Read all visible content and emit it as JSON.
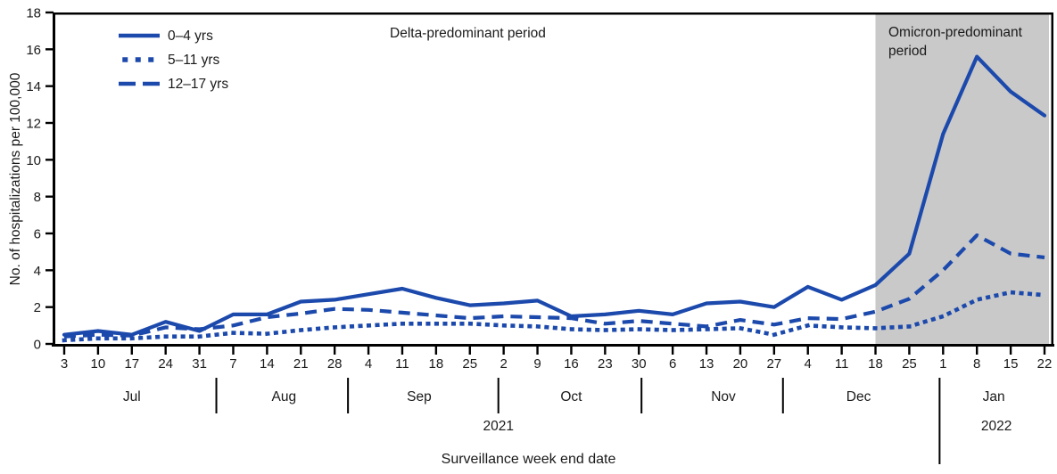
{
  "figure": {
    "ylabel": "No. of hospitalizations per 100,000",
    "xlabel": "Surveillance week end date",
    "delta_annotation": "Delta-predominant period",
    "omicron_annotation": "Omicron-predominant period"
  },
  "legend": [
    {
      "label": "0–4 yrs",
      "style": "solid"
    },
    {
      "label": "5–11 yrs",
      "style": "dotted"
    },
    {
      "label": "12–17 yrs",
      "style": "dashed"
    }
  ],
  "colors": {
    "line_blue": "#1c49ac",
    "shade_gray": "#c9c9c9",
    "axis_black": "#000000",
    "text": "#1a1a1a"
  },
  "chart_data": {
    "type": "line",
    "title": "",
    "xlabel": "Surveillance week end date",
    "ylabel": "No. of hospitalizations per 100,000",
    "ylim": [
      0,
      18
    ],
    "y_ticks": [
      0,
      2,
      4,
      6,
      8,
      10,
      12,
      14,
      16,
      18
    ],
    "grid": false,
    "legend_position": "top-left-inside",
    "x_week_labels": [
      "3",
      "10",
      "17",
      "24",
      "31",
      "7",
      "14",
      "21",
      "28",
      "4",
      "11",
      "18",
      "25",
      "2",
      "9",
      "16",
      "23",
      "30",
      "6",
      "13",
      "20",
      "27",
      "4",
      "11",
      "18",
      "25",
      "1",
      "8",
      "15",
      "22"
    ],
    "month_groups": [
      {
        "label": "Jul",
        "count": 5
      },
      {
        "label": "Aug",
        "count": 4
      },
      {
        "label": "Sep",
        "count": 4
      },
      {
        "label": "Oct",
        "count": 5
      },
      {
        "label": "Nov",
        "count": 4
      },
      {
        "label": "Dec",
        "count": 4
      },
      {
        "label": "Jan",
        "count": 4
      }
    ],
    "year_labels": [
      "2021",
      "2022"
    ],
    "series": [
      {
        "name": "0–4 yrs",
        "style": "solid",
        "values": [
          0.5,
          0.7,
          0.5,
          1.2,
          0.7,
          1.6,
          1.6,
          2.3,
          2.4,
          2.7,
          3.0,
          2.5,
          2.1,
          2.2,
          2.35,
          1.5,
          1.6,
          1.8,
          1.6,
          2.2,
          2.3,
          2.0,
          3.1,
          2.4,
          3.2,
          4.9,
          11.4,
          15.6,
          13.7,
          12.4
        ]
      },
      {
        "name": "5–11 yrs",
        "style": "dotted",
        "values": [
          0.2,
          0.3,
          0.3,
          0.4,
          0.4,
          0.6,
          0.55,
          0.75,
          0.9,
          1.0,
          1.1,
          1.1,
          1.1,
          1.0,
          0.95,
          0.8,
          0.75,
          0.8,
          0.75,
          0.8,
          0.85,
          0.5,
          1.0,
          0.9,
          0.85,
          0.95,
          1.5,
          2.4,
          2.8,
          2.65
        ]
      },
      {
        "name": "12–17 yrs",
        "style": "dashed",
        "values": [
          0.4,
          0.5,
          0.45,
          0.9,
          0.8,
          1.0,
          1.45,
          1.65,
          1.9,
          1.85,
          1.7,
          1.55,
          1.4,
          1.5,
          1.45,
          1.4,
          1.1,
          1.25,
          1.1,
          0.95,
          1.3,
          1.05,
          1.4,
          1.35,
          1.75,
          2.45,
          4.0,
          5.9,
          4.9,
          4.7
        ]
      }
    ],
    "annotations": [
      {
        "text": "Delta-predominant period",
        "position": "top-center"
      },
      {
        "text": "Omicron-predominant period",
        "position": "top-right-inside-shade"
      }
    ],
    "shaded_region": {
      "label": "Omicron-predominant period",
      "start_week_label": "Dec 18",
      "start_week_index": 24,
      "extends_to": "right edge"
    }
  }
}
